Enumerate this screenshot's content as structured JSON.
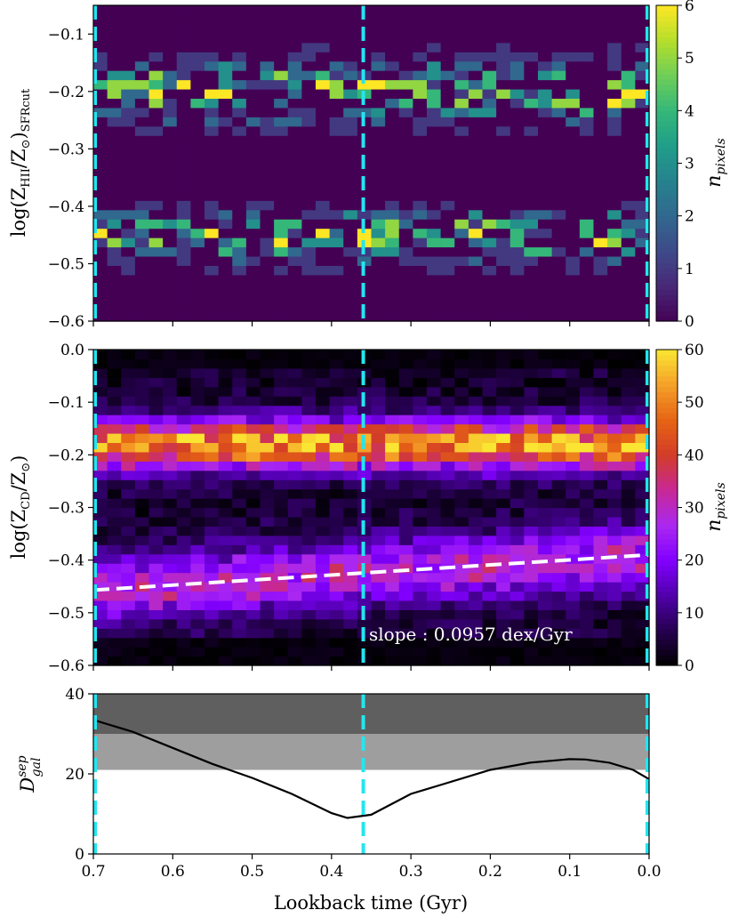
{
  "chart_data": [
    {
      "type": "heatmap",
      "ylabel": "log(Z_HII/Z_⊙)_SFRcut",
      "ylabel_main": "log(Z",
      "ylabel_sub1": "HII",
      "ylabel_mid": "/Z",
      "ylabel_sub2": "⊙",
      "ylabel_end": ")",
      "ylabel_sub3": "SFRcut",
      "xlim": [
        0.7,
        0.0
      ],
      "ylim": [
        -0.6,
        -0.05
      ],
      "yticks": [
        -0.6,
        -0.5,
        -0.4,
        -0.3,
        -0.2,
        -0.1
      ],
      "ytick_labels": [
        "−0.6",
        "−0.5",
        "−0.4",
        "−0.3",
        "−0.2",
        "−0.1"
      ],
      "nx": 40,
      "ny": 34,
      "colorbar": {
        "label": "n_pixels",
        "label_text": "n",
        "label_sub": "pixels",
        "colormap": "viridis",
        "range": [
          0,
          6
        ],
        "ticks": [
          0,
          1,
          2,
          3,
          4,
          5,
          6
        ],
        "tick_labels": [
          "0",
          "1",
          "2",
          "3",
          "4",
          "5",
          "6"
        ]
      },
      "density_description": "sparse counts concentrated in two bands near -0.2 and -0.45",
      "bands": [
        {
          "center": -0.2,
          "width": 0.05,
          "peak": 6
        },
        {
          "center": -0.45,
          "width": 0.04,
          "peak": 6
        }
      ],
      "vlines": [
        0.7,
        0.36,
        0.0
      ]
    },
    {
      "type": "heatmap",
      "ylabel": "log(Z_CD/Z_⊙)",
      "ylabel_main": "log(Z",
      "ylabel_sub1": "CD",
      "ylabel_mid": "/Z",
      "ylabel_sub2": "⊙",
      "ylabel_end": ")",
      "xlim": [
        0.7,
        0.0
      ],
      "ylim": [
        -0.6,
        0.0
      ],
      "yticks": [
        -0.6,
        -0.5,
        -0.4,
        -0.3,
        -0.2,
        -0.1,
        0.0
      ],
      "ytick_labels": [
        "−0.6",
        "−0.5",
        "−0.4",
        "−0.3",
        "−0.2",
        "−0.1",
        "0.0"
      ],
      "nx": 40,
      "ny": 34,
      "colorbar": {
        "label": "n_pixels",
        "label_text": "n",
        "label_sub": "pixels",
        "colormap": "plasma-like",
        "range": [
          0,
          60
        ],
        "ticks": [
          0,
          10,
          20,
          30,
          40,
          50,
          60
        ],
        "tick_labels": [
          "0",
          "10",
          "20",
          "30",
          "40",
          "50",
          "60"
        ]
      },
      "bands": [
        {
          "center": -0.18,
          "width": 0.045,
          "peak": 58
        },
        {
          "center": -0.46,
          "width": 0.06,
          "peak": 30
        }
      ],
      "fit_line": {
        "x": [
          0.7,
          0.0
        ],
        "y": [
          -0.457,
          -0.39
        ],
        "style": "white dashed"
      },
      "annotation": "slope : 0.0957 dex/Gyr",
      "vlines": [
        0.7,
        0.36,
        0.0
      ]
    },
    {
      "type": "line",
      "ylabel": "D_gal^sep",
      "ylabel_main": "D",
      "ylabel_sup": "sep",
      "ylabel_sub": "gal",
      "xlabel": "Lookback time (Gyr)",
      "xlim": [
        0.7,
        0.0
      ],
      "ylim": [
        0,
        40
      ],
      "xticks": [
        0.7,
        0.6,
        0.5,
        0.4,
        0.3,
        0.2,
        0.1,
        0.0
      ],
      "xtick_labels": [
        "0.7",
        "0.6",
        "0.5",
        "0.4",
        "0.3",
        "0.2",
        "0.1",
        "0.0"
      ],
      "yticks": [
        0,
        20,
        40
      ],
      "ytick_labels": [
        "0",
        "20",
        "40"
      ],
      "shaded_bands": [
        {
          "y": [
            30,
            40
          ],
          "color": "#5f5f5f"
        },
        {
          "y": [
            21,
            30
          ],
          "color": "#9e9e9e"
        }
      ],
      "series": [
        {
          "name": "D_sep",
          "x": [
            0.7,
            0.65,
            0.6,
            0.55,
            0.5,
            0.45,
            0.4,
            0.38,
            0.35,
            0.3,
            0.25,
            0.2,
            0.15,
            0.1,
            0.08,
            0.05,
            0.02,
            0.0
          ],
          "y": [
            33.5,
            30.5,
            26.5,
            22.5,
            19,
            15,
            10.2,
            9,
            9.8,
            15,
            18,
            21,
            22.8,
            23.7,
            23.6,
            22.8,
            21,
            18.7
          ]
        }
      ],
      "vlines": [
        0.7,
        0.36,
        0.0
      ]
    }
  ]
}
